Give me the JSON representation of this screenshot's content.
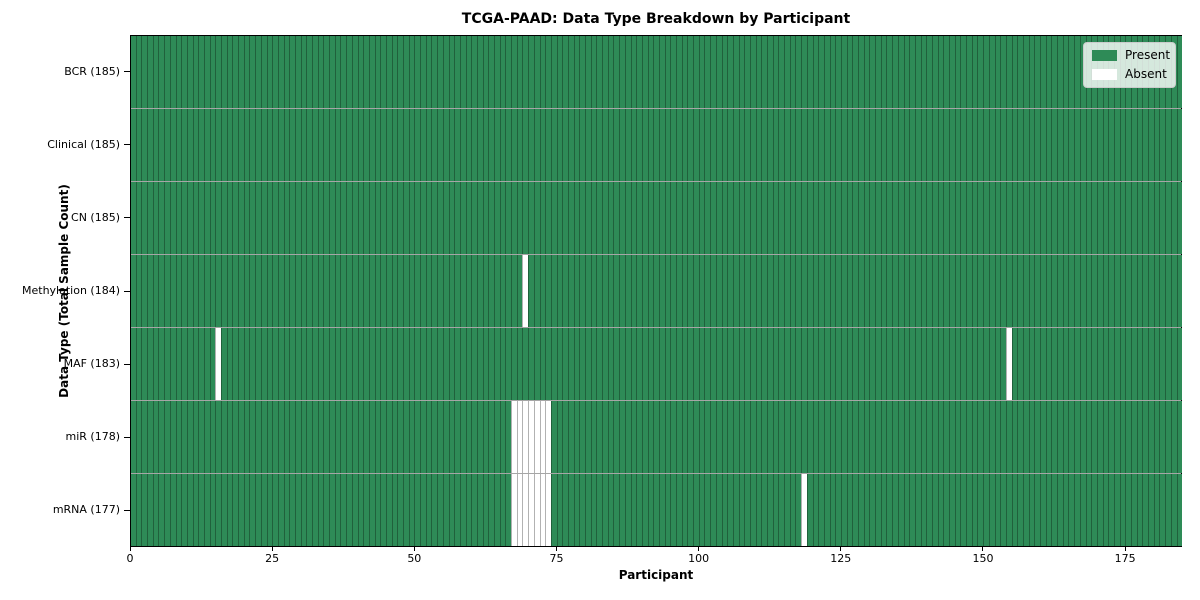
{
  "title": "TCGA-PAAD: Data Type Breakdown by Participant",
  "axes": {
    "xlabel": "Participant",
    "ylabel": "Data Type (Total Sample Count)"
  },
  "legend": {
    "present": "Present",
    "absent": "Absent"
  },
  "colors": {
    "present": "#2e8b57",
    "absent": "#ffffff",
    "cell_edge": "rgba(0,0,0,0.30)",
    "legend_bg": "rgba(255,255,255,0.8)"
  },
  "chart_data": {
    "type": "heatmap",
    "title": "TCGA-PAAD: Data Type Breakdown by Participant",
    "xlabel": "Participant",
    "ylabel": "Data Type (Total Sample Count)",
    "x_range": [
      0,
      185
    ],
    "n_participants": 185,
    "x_ticks": [
      0,
      25,
      50,
      75,
      100,
      125,
      150,
      175
    ],
    "legend": {
      "present": "Present",
      "absent": "Absent"
    },
    "cell_values": {
      "present": 1,
      "absent": 0
    },
    "rows": [
      {
        "data_type": "BCR",
        "total_samples": 185,
        "label": "BCR (185)",
        "absent_participants": []
      },
      {
        "data_type": "Clinical",
        "total_samples": 185,
        "label": "Clinical (185)",
        "absent_participants": []
      },
      {
        "data_type": "CN",
        "total_samples": 185,
        "label": "CN (185)",
        "absent_participants": []
      },
      {
        "data_type": "Methylation",
        "total_samples": 184,
        "label": "Methylation (184)",
        "absent_participants": [
          69
        ]
      },
      {
        "data_type": "MAF",
        "total_samples": 183,
        "label": "MAF (183)",
        "absent_participants": [
          15,
          154
        ]
      },
      {
        "data_type": "miR",
        "total_samples": 178,
        "label": "miR (178)",
        "absent_participants": [
          67,
          68,
          69,
          70,
          71,
          72,
          73
        ]
      },
      {
        "data_type": "mRNA",
        "total_samples": 177,
        "label": "mRNA (177)",
        "absent_participants": [
          67,
          68,
          69,
          70,
          71,
          72,
          73,
          118
        ]
      }
    ]
  }
}
